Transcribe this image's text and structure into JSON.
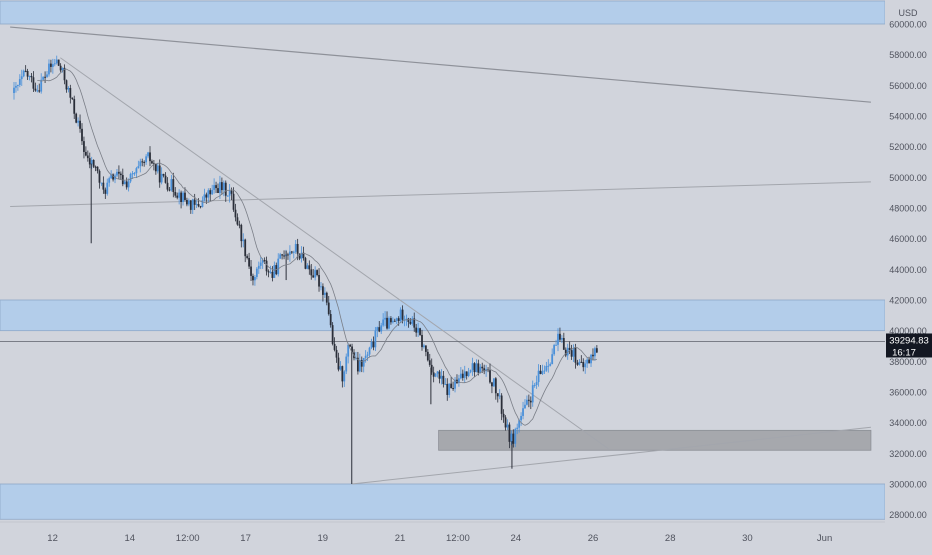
{
  "chart_data": {
    "type": "candlestick",
    "currency": "USD",
    "ylim": [
      27000,
      61000
    ],
    "y_ticks": [
      {
        "value": 60000,
        "label": "60000.00"
      },
      {
        "value": 58000,
        "label": "58000.00"
      },
      {
        "value": 56000,
        "label": "56000.00"
      },
      {
        "value": 54000,
        "label": "54000.00"
      },
      {
        "value": 52000,
        "label": "52000.00"
      },
      {
        "value": 50000,
        "label": "50000.00"
      },
      {
        "value": 48000,
        "label": "48000.00"
      },
      {
        "value": 46000,
        "label": "46000.00"
      },
      {
        "value": 44000,
        "label": "44000.00"
      },
      {
        "value": 42000,
        "label": "42000.00"
      },
      {
        "value": 40000,
        "label": "40000.00"
      },
      {
        "value": 38000,
        "label": "38000.00"
      },
      {
        "value": 36000,
        "label": "36000.00"
      },
      {
        "value": 34000,
        "label": "34000.00"
      },
      {
        "value": 32000,
        "label": "32000.00"
      },
      {
        "value": 30000,
        "label": "30000.00"
      },
      {
        "value": 28000,
        "label": "28000.00"
      }
    ],
    "x_ticks": [
      {
        "t": 1,
        "label": "12"
      },
      {
        "t": 3,
        "label": "14"
      },
      {
        "t": 4.5,
        "label": "12:00"
      },
      {
        "t": 6,
        "label": "17"
      },
      {
        "t": 8,
        "label": "19"
      },
      {
        "t": 10,
        "label": "21"
      },
      {
        "t": 11.5,
        "label": "12:00"
      },
      {
        "t": 13,
        "label": "24"
      },
      {
        "t": 15,
        "label": "26"
      },
      {
        "t": 17,
        "label": "28"
      },
      {
        "t": 19,
        "label": "30"
      },
      {
        "t": 21,
        "label": "Jun"
      }
    ],
    "price_path": [
      [
        0,
        55500
      ],
      [
        0.3,
        56800
      ],
      [
        0.6,
        55800
      ],
      [
        0.9,
        57000
      ],
      [
        1.1,
        57600
      ],
      [
        1.3,
        56500
      ],
      [
        1.6,
        54000
      ],
      [
        1.9,
        51000
      ],
      [
        2.1,
        50800
      ],
      [
        2.3,
        49000
      ],
      [
        2.6,
        50200
      ],
      [
        2.9,
        49600
      ],
      [
        3.2,
        50400
      ],
      [
        3.5,
        51300
      ],
      [
        3.8,
        50000
      ],
      [
        4.1,
        49400
      ],
      [
        4.4,
        48600
      ],
      [
        4.7,
        48000
      ],
      [
        5.0,
        48800
      ],
      [
        5.3,
        49400
      ],
      [
        5.6,
        49000
      ],
      [
        5.8,
        47000
      ],
      [
        6.0,
        45200
      ],
      [
        6.2,
        43200
      ],
      [
        6.4,
        44600
      ],
      [
        6.7,
        43600
      ],
      [
        7.0,
        45200
      ],
      [
        7.3,
        45300
      ],
      [
        7.6,
        44200
      ],
      [
        7.9,
        43200
      ],
      [
        8.1,
        42200
      ],
      [
        8.3,
        38400
      ],
      [
        8.5,
        37000
      ],
      [
        8.7,
        39200
      ],
      [
        8.9,
        37500
      ],
      [
        9.2,
        38500
      ],
      [
        9.5,
        40500
      ],
      [
        9.8,
        40400
      ],
      [
        10.1,
        41200
      ],
      [
        10.4,
        40200
      ],
      [
        10.6,
        39000
      ],
      [
        10.8,
        37600
      ],
      [
        11.0,
        37000
      ],
      [
        11.2,
        36100
      ],
      [
        11.5,
        36600
      ],
      [
        11.8,
        37700
      ],
      [
        12.1,
        37500
      ],
      [
        12.4,
        36700
      ],
      [
        12.6,
        35200
      ],
      [
        12.8,
        33300
      ],
      [
        12.9,
        32800
      ],
      [
        13.1,
        34200
      ],
      [
        13.3,
        35200
      ],
      [
        13.6,
        37000
      ],
      [
        13.9,
        38300
      ],
      [
        14.1,
        39400
      ],
      [
        14.3,
        38800
      ],
      [
        14.5,
        38600
      ],
      [
        14.7,
        37500
      ],
      [
        14.9,
        38100
      ],
      [
        15.1,
        38800
      ]
    ],
    "spikes": [
      {
        "t": 2.0,
        "low": 45700
      },
      {
        "t": 7.05,
        "low": 43300
      },
      {
        "t": 8.75,
        "low": 30000
      },
      {
        "t": 10.8,
        "low": 35200
      },
      {
        "t": 12.9,
        "low": 31000
      }
    ],
    "last_price": {
      "value": 39294.83,
      "label": "39294.83",
      "countdown": "16:17"
    },
    "zones": [
      {
        "from": 60000,
        "to": 61500,
        "color": "#b3cdea"
      },
      {
        "from": 40000,
        "to": 42000,
        "color": "#b3cdea"
      },
      {
        "from": 27700,
        "to": 30000,
        "color": "#b3cdea"
      },
      {
        "from": 32200,
        "to": 33500,
        "t_from": 11.0,
        "t_to": 22.2,
        "color": "#a6a8ad"
      }
    ],
    "trendlines": [
      {
        "t1": -0.1,
        "p1": 59800,
        "t2": 22.2,
        "p2": 54900,
        "color": "#8e9199",
        "width": 1.2
      },
      {
        "t1": -0.1,
        "p1": 48100,
        "t2": 22.2,
        "p2": 49700,
        "color": "#a3a6ad",
        "width": 1
      },
      {
        "t1": 1.2,
        "p1": 57800,
        "t2": 15.4,
        "p2": 32300,
        "color": "#a3a6ad",
        "width": 1
      },
      {
        "t1": 8.75,
        "p1": 30000,
        "t2": 22.2,
        "p2": 33700,
        "color": "#a3a6ad",
        "width": 1
      }
    ],
    "up_color": "#4a90d9",
    "down_color": "#2a2e39",
    "ma_color": "#7a7e87"
  }
}
